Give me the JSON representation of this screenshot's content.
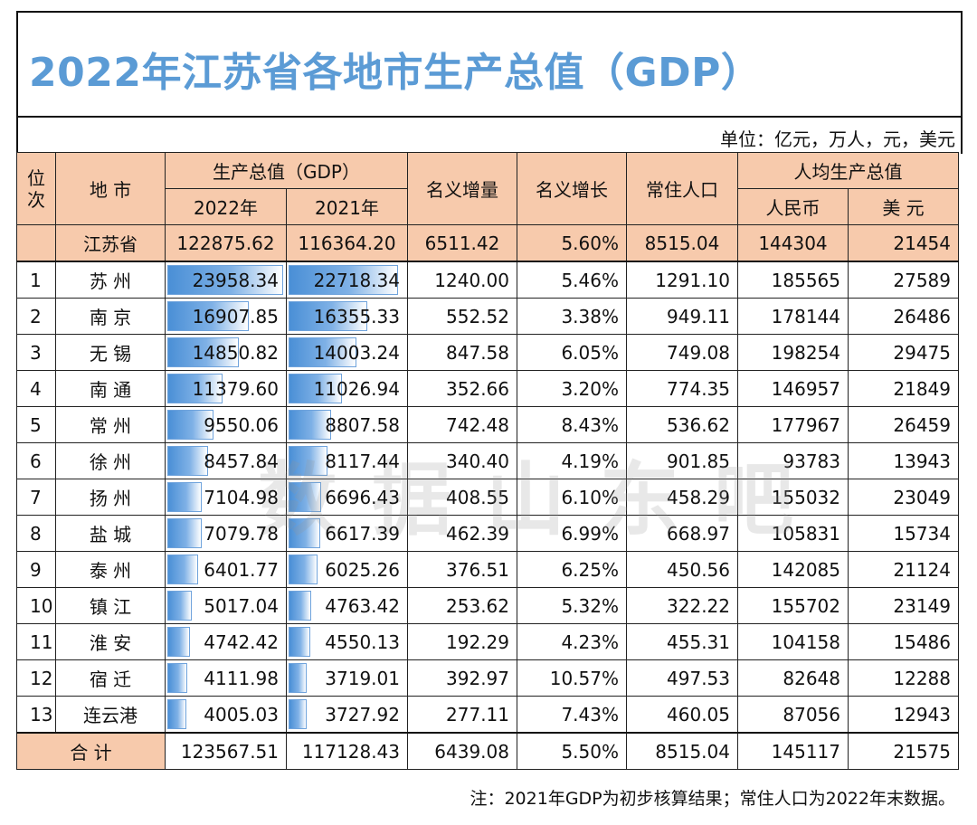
{
  "title": "2022年江苏省各地市生产总值（GDP）",
  "unit": "单位：亿元，万人，元，美元",
  "headers": {
    "rank": "位次",
    "city": "地 市",
    "gdp": "生产总值（GDP）",
    "y2022": "2022年",
    "y2021": "2021年",
    "increase": "名义增量",
    "growth": "名义增长",
    "population": "常住人口",
    "per_capita": "人均生产总值",
    "rmb": "人民币",
    "usd": "美 元"
  },
  "province": {
    "name": "江苏省",
    "gdp2022": "122875.62",
    "gdp2021": "116364.20",
    "increase": "6511.42",
    "growth": "5.60%",
    "population": "8515.04",
    "rmb": "144304",
    "usd": "21454"
  },
  "rows": [
    {
      "rank": "1",
      "city": "苏 州",
      "gdp2022": "23958.34",
      "gdp2021": "22718.34",
      "increase": "1240.00",
      "growth": "5.46%",
      "population": "1291.10",
      "rmb": "185565",
      "usd": "27589"
    },
    {
      "rank": "2",
      "city": "南 京",
      "gdp2022": "16907.85",
      "gdp2021": "16355.33",
      "increase": "552.52",
      "growth": "3.38%",
      "population": "949.11",
      "rmb": "178144",
      "usd": "26486"
    },
    {
      "rank": "3",
      "city": "无 锡",
      "gdp2022": "14850.82",
      "gdp2021": "14003.24",
      "increase": "847.58",
      "growth": "6.05%",
      "population": "749.08",
      "rmb": "198254",
      "usd": "29475"
    },
    {
      "rank": "4",
      "city": "南 通",
      "gdp2022": "11379.60",
      "gdp2021": "11026.94",
      "increase": "352.66",
      "growth": "3.20%",
      "population": "774.35",
      "rmb": "146957",
      "usd": "21849"
    },
    {
      "rank": "5",
      "city": "常 州",
      "gdp2022": "9550.06",
      "gdp2021": "8807.58",
      "increase": "742.48",
      "growth": "8.43%",
      "population": "536.62",
      "rmb": "177967",
      "usd": "26459"
    },
    {
      "rank": "6",
      "city": "徐 州",
      "gdp2022": "8457.84",
      "gdp2021": "8117.44",
      "increase": "340.40",
      "growth": "4.19%",
      "population": "901.85",
      "rmb": "93783",
      "usd": "13943"
    },
    {
      "rank": "7",
      "city": "扬 州",
      "gdp2022": "7104.98",
      "gdp2021": "6696.43",
      "increase": "408.55",
      "growth": "6.10%",
      "population": "458.29",
      "rmb": "155032",
      "usd": "23049"
    },
    {
      "rank": "8",
      "city": "盐 城",
      "gdp2022": "7079.78",
      "gdp2021": "6617.39",
      "increase": "462.39",
      "growth": "6.99%",
      "population": "668.97",
      "rmb": "105831",
      "usd": "15734"
    },
    {
      "rank": "9",
      "city": "泰 州",
      "gdp2022": "6401.77",
      "gdp2021": "6025.26",
      "increase": "376.51",
      "growth": "6.25%",
      "population": "450.56",
      "rmb": "142085",
      "usd": "21124"
    },
    {
      "rank": "10",
      "city": "镇 江",
      "gdp2022": "5017.04",
      "gdp2021": "4763.42",
      "increase": "253.62",
      "growth": "5.32%",
      "population": "322.22",
      "rmb": "155702",
      "usd": "23149"
    },
    {
      "rank": "11",
      "city": "淮 安",
      "gdp2022": "4742.42",
      "gdp2021": "4550.13",
      "increase": "192.29",
      "growth": "4.23%",
      "population": "455.31",
      "rmb": "104158",
      "usd": "15486"
    },
    {
      "rank": "12",
      "city": "宿 迁",
      "gdp2022": "4111.98",
      "gdp2021": "3719.01",
      "increase": "392.97",
      "growth": "10.57%",
      "population": "497.53",
      "rmb": "82648",
      "usd": "12288"
    },
    {
      "rank": "13",
      "city": "连云港",
      "gdp2022": "4005.03",
      "gdp2021": "3727.92",
      "increase": "277.11",
      "growth": "7.43%",
      "population": "460.05",
      "rmb": "87056",
      "usd": "12943"
    }
  ],
  "total": {
    "label": "合 计",
    "gdp2022": "123567.51",
    "gdp2021": "117128.43",
    "increase": "6439.08",
    "growth": "5.50%",
    "population": "8515.04",
    "rmb": "145117",
    "usd": "21575"
  },
  "watermark": "数据山东吧",
  "note": "注：2021年GDP为初步核算结果；常住人口为2022年末数据。",
  "colors": {
    "title": "#5b9bd5",
    "header_fill": "#f7caac",
    "bar": "#4a8fd6"
  }
}
